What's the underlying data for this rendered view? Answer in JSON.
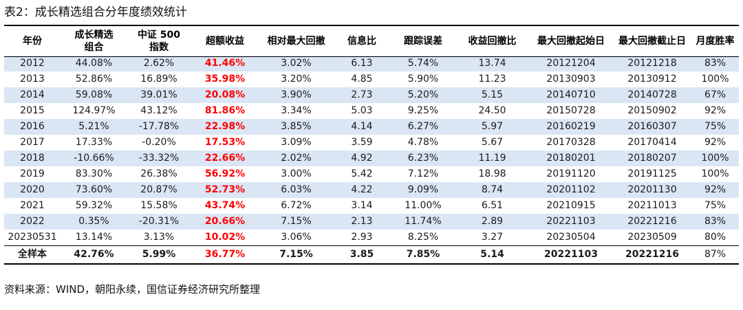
{
  "caption": "表2：成长精选组合分年度绩效统计",
  "columns": [
    "年份",
    "成长精选组合",
    "中证 500 指数",
    "超额收益",
    "相对最大回撤",
    "信息比",
    "跟踪误差",
    "收益回撤比",
    "最大回撤起始日",
    "最大回撤截止日",
    "月度胜率"
  ],
  "rows": [
    [
      "2012",
      "44.08%",
      "2.62%",
      "41.46%",
      "3.02%",
      "6.13",
      "5.74%",
      "13.74",
      "20121204",
      "20121218",
      "83%"
    ],
    [
      "2013",
      "52.86%",
      "16.89%",
      "35.98%",
      "3.20%",
      "4.85",
      "5.90%",
      "11.23",
      "20130903",
      "20130912",
      "100%"
    ],
    [
      "2014",
      "59.08%",
      "39.01%",
      "20.08%",
      "3.90%",
      "2.73",
      "5.20%",
      "5.15",
      "20140710",
      "20140728",
      "67%"
    ],
    [
      "2015",
      "124.97%",
      "43.12%",
      "81.86%",
      "3.34%",
      "5.03",
      "9.25%",
      "24.50",
      "20150728",
      "20150902",
      "92%"
    ],
    [
      "2016",
      "5.21%",
      "-17.78%",
      "22.98%",
      "3.85%",
      "4.14",
      "6.27%",
      "5.97",
      "20160219",
      "20160307",
      "75%"
    ],
    [
      "2017",
      "17.33%",
      "-0.20%",
      "17.53%",
      "3.09%",
      "3.59",
      "4.78%",
      "5.67",
      "20170328",
      "20170414",
      "92%"
    ],
    [
      "2018",
      "-10.66%",
      "-33.32%",
      "22.66%",
      "2.02%",
      "4.92",
      "6.23%",
      "11.19",
      "20180201",
      "20180207",
      "100%"
    ],
    [
      "2019",
      "83.30%",
      "26.38%",
      "56.92%",
      "3.00%",
      "5.42",
      "7.12%",
      "18.98",
      "20191120",
      "20191125",
      "100%"
    ],
    [
      "2020",
      "73.60%",
      "20.87%",
      "52.73%",
      "6.03%",
      "4.22",
      "9.09%",
      "8.74",
      "20201102",
      "20201130",
      "92%"
    ],
    [
      "2021",
      "59.32%",
      "15.58%",
      "43.74%",
      "6.72%",
      "3.14",
      "11.00%",
      "6.51",
      "20210915",
      "20211013",
      "75%"
    ],
    [
      "2022",
      "0.35%",
      "-20.31%",
      "20.66%",
      "7.15%",
      "2.13",
      "11.74%",
      "2.89",
      "20221103",
      "20221216",
      "83%"
    ],
    [
      "20230531",
      "13.14%",
      "3.13%",
      "10.02%",
      "3.06%",
      "2.93",
      "8.25%",
      "3.27",
      "20230504",
      "20230509",
      "80%"
    ]
  ],
  "total": [
    "全样本",
    "42.76%",
    "5.99%",
    "36.77%",
    "7.15%",
    "3.85",
    "7.85%",
    "5.14",
    "20221103",
    "20221216",
    "87%"
  ],
  "footer": "资料来源：WIND，朝阳永续，国信证券经济研究所整理",
  "colors": {
    "excess": "#ff0000",
    "stripe": "#dbe6f4"
  }
}
